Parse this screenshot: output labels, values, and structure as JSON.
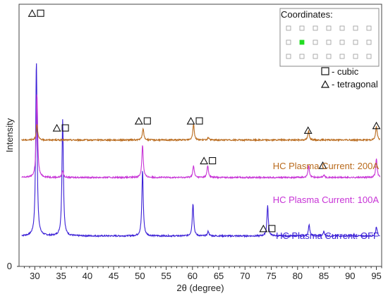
{
  "chart_data": {
    "type": "line",
    "xlabel": "2θ (degree)",
    "ylabel": "Intensity",
    "xlim": [
      27,
      96
    ],
    "x_ticks": [
      30,
      35,
      40,
      45,
      50,
      55,
      60,
      65,
      70,
      75,
      80,
      85,
      90,
      95
    ],
    "y_ticks": [
      0
    ],
    "y_tick_labels": [
      "0"
    ],
    "grid": false,
    "series": [
      {
        "name": "HC Plasma Current: OFF",
        "color": "#3a1fd6",
        "baseline": 0.13,
        "peaks": [
          [
            30.3,
            0.75
          ],
          [
            35.3,
            0.5
          ],
          [
            50.5,
            0.28
          ],
          [
            60.1,
            0.14
          ],
          [
            63.0,
            0.02
          ],
          [
            74.3,
            0.13
          ],
          [
            82.2,
            0.05
          ],
          [
            85.0,
            0.02
          ],
          [
            95.0,
            0.04
          ]
        ]
      },
      {
        "name": "HC Plasma Current: 100A",
        "color": "#c733d6",
        "baseline": 0.38,
        "peaks": [
          [
            30.4,
            0.36
          ],
          [
            35.3,
            0.03
          ],
          [
            50.5,
            0.14
          ],
          [
            60.2,
            0.05
          ],
          [
            62.9,
            0.05
          ],
          [
            82.1,
            0.05
          ],
          [
            85.0,
            0.01
          ],
          [
            95.0,
            0.08
          ]
        ]
      },
      {
        "name": "HC Plasma Current: 200A",
        "color": "#b96a1c",
        "baseline": 0.54,
        "peaks": [
          [
            30.4,
            0.07
          ],
          [
            50.6,
            0.05
          ],
          [
            60.2,
            0.07
          ],
          [
            63.0,
            0.01
          ],
          [
            82.1,
            0.04
          ],
          [
            95.0,
            0.06
          ]
        ]
      }
    ],
    "markers": [
      {
        "x": 30.3,
        "y": 1.08,
        "symbols": "triangle,square",
        "series": "none"
      },
      {
        "x": 35.0,
        "y": 0.59,
        "symbols": "triangle,square",
        "series": "none"
      },
      {
        "x": 50.6,
        "y": 0.62,
        "symbols": "triangle,square",
        "series": "none"
      },
      {
        "x": 60.5,
        "y": 0.62,
        "symbols": "triangle,square",
        "series": "none"
      },
      {
        "x": 82.0,
        "y": 0.58,
        "symbols": "triangle",
        "series": "none"
      },
      {
        "x": 95.0,
        "y": 0.6,
        "symbols": "triangle",
        "series": "none"
      },
      {
        "x": 63.0,
        "y": 0.45,
        "symbols": "triangle,square",
        "series": "none"
      },
      {
        "x": 84.8,
        "y": 0.43,
        "symbols": "triangle",
        "series": "none"
      },
      {
        "x": 74.3,
        "y": 0.16,
        "symbols": "triangle,square",
        "series": "none"
      }
    ],
    "legend": [
      {
        "symbol": "square",
        "label": "- cubic"
      },
      {
        "symbol": "triangle",
        "label": "- tetragonal"
      }
    ],
    "legend_placement": "top-right",
    "inset": {
      "title": "Coordinates:",
      "rows": 3,
      "cols": 7,
      "highlight": [
        1,
        1
      ],
      "highlight_color": "#22dd22"
    }
  }
}
